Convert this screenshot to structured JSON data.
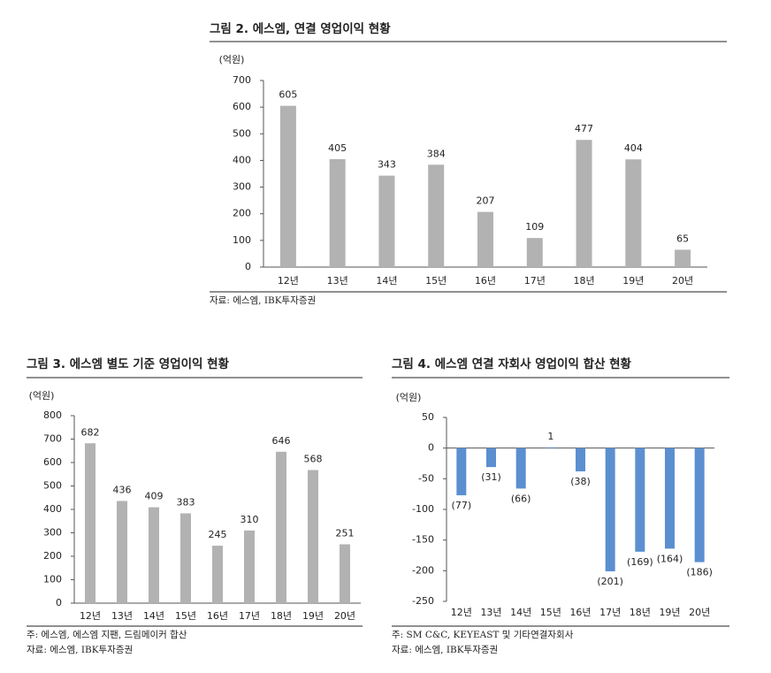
{
  "chart_data": [
    {
      "type": "bar",
      "title": "그림 2. 에스엠, 연결 영업이익 현황",
      "unit_label": "(억원)",
      "categories": [
        "12년",
        "13년",
        "14년",
        "15년",
        "16년",
        "17년",
        "18년",
        "19년",
        "20년"
      ],
      "values": [
        605,
        405,
        343,
        384,
        207,
        109,
        477,
        404,
        65
      ],
      "color": "#b2b2b2",
      "ylim": [
        0,
        700
      ],
      "yticks": [
        0,
        100,
        200,
        300,
        400,
        500,
        600,
        700
      ],
      "notes": [
        "자료: 에스엠, IBK투자증권"
      ]
    },
    {
      "type": "bar",
      "title": "그림 3. 에스엠 별도 기준 영업이익 현황",
      "unit_label": "(억원)",
      "categories": [
        "12년",
        "13년",
        "14년",
        "15년",
        "16년",
        "17년",
        "18년",
        "19년",
        "20년"
      ],
      "values": [
        682,
        436,
        409,
        383,
        245,
        310,
        646,
        568,
        251
      ],
      "color": "#b2b2b2",
      "ylim": [
        0,
        800
      ],
      "yticks": [
        0,
        100,
        200,
        300,
        400,
        500,
        600,
        700,
        800
      ],
      "notes": [
        "주: 에스엠, 에스엠 지팬, 드림메이커 합산",
        "자료: 에스엠, IBK투자증권"
      ]
    },
    {
      "type": "bar",
      "title": "그림 4. 에스엠 연결 자회사 영업이익 합산 현황",
      "unit_label": "(억원)",
      "categories": [
        "12년",
        "13년",
        "14년",
        "15년",
        "16년",
        "17년",
        "18년",
        "19년",
        "20년"
      ],
      "values": [
        -77,
        -31,
        -66,
        1,
        -38,
        -201,
        -169,
        -164,
        -186
      ],
      "value_labels": [
        "(77)",
        "(31)",
        "(66)",
        "1",
        "(38)",
        "(201)",
        "(169)",
        "(164)",
        "(186)"
      ],
      "color": "#5b8fd0",
      "ylim": [
        -250,
        50
      ],
      "yticks": [
        -250,
        -200,
        -150,
        -100,
        -50,
        0,
        50
      ],
      "notes": [
        "주: SM C&C, KEYEAST 및 기타연결자회사",
        "자료: 에스엠, IBK투자증권"
      ]
    }
  ]
}
